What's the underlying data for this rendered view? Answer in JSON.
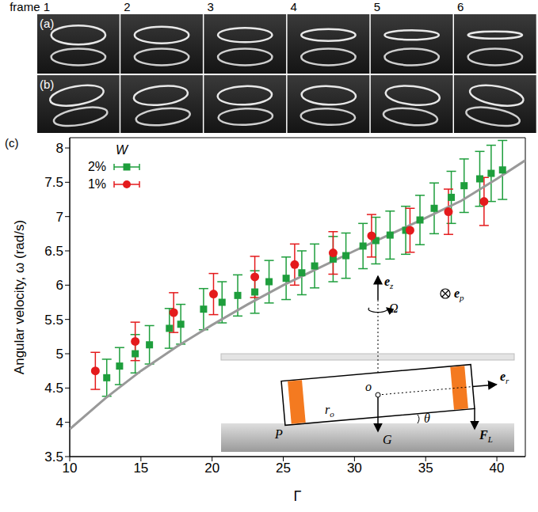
{
  "chart_data": {
    "type": "scatter",
    "panel_label": "(c)",
    "x_label": "Γ",
    "y_label": "Angular velocity, ω (rad/s)",
    "xlim": [
      10,
      42
    ],
    "xticks": [
      10,
      15,
      20,
      25,
      30,
      35,
      40
    ],
    "ylim": [
      3.5,
      8.15
    ],
    "yticks": [
      3.5,
      4,
      4.5,
      5,
      5.5,
      6,
      6.5,
      7,
      7.5,
      8
    ],
    "legend": "top-left",
    "legend_title": "W",
    "series": [
      {
        "type": "line",
        "color": "#999999",
        "line_style": "solid",
        "x": [
          10,
          12.5,
          15,
          17.5,
          20,
          22.5,
          25,
          27.5,
          30,
          32.5,
          35,
          37.5,
          40,
          42
        ],
        "values": [
          3.9,
          4.35,
          4.75,
          5.1,
          5.42,
          5.72,
          6.0,
          6.25,
          6.5,
          6.74,
          6.98,
          7.23,
          7.55,
          7.82
        ]
      },
      {
        "name": "2%",
        "type": "scatter",
        "color": "#1e9e3c",
        "marker": "square",
        "x": [
          12.6,
          13.5,
          14.6,
          15.6,
          17.0,
          17.8,
          19.4,
          20.7,
          21.8,
          23.0,
          24.0,
          25.2,
          26.3,
          27.2,
          28.5,
          29.4,
          30.6,
          31.5,
          32.5,
          33.6,
          34.6,
          35.6,
          36.8,
          37.7,
          38.8,
          39.6,
          40.4
        ],
        "values": [
          4.65,
          4.82,
          5.0,
          5.13,
          5.37,
          5.43,
          5.65,
          5.75,
          5.85,
          5.9,
          6.05,
          6.1,
          6.18,
          6.28,
          6.38,
          6.43,
          6.57,
          6.65,
          6.73,
          6.8,
          6.95,
          7.12,
          7.28,
          7.45,
          7.55,
          7.63,
          7.68
        ],
        "errors": [
          0.27,
          0.27,
          0.28,
          0.28,
          0.29,
          0.29,
          0.3,
          0.3,
          0.3,
          0.31,
          0.31,
          0.31,
          0.32,
          0.32,
          0.33,
          0.33,
          0.33,
          0.34,
          0.35,
          0.35,
          0.36,
          0.37,
          0.38,
          0.39,
          0.4,
          0.41,
          0.43
        ]
      },
      {
        "name": "1%",
        "type": "scatter",
        "color": "#e41a1c",
        "marker": "circle",
        "x": [
          11.8,
          14.6,
          17.3,
          20.1,
          23.0,
          25.8,
          28.5,
          31.2,
          33.9,
          36.6,
          39.1
        ],
        "values": [
          4.75,
          5.18,
          5.6,
          5.87,
          6.12,
          6.3,
          6.47,
          6.72,
          6.8,
          7.07,
          7.22
        ],
        "errors": [
          0.27,
          0.28,
          0.29,
          0.3,
          0.3,
          0.3,
          0.31,
          0.31,
          0.32,
          0.33,
          0.35
        ]
      }
    ],
    "annotations": [
      {
        "text": "e",
        "sub": "z"
      },
      {
        "text": "Ω"
      },
      {
        "text": "e",
        "sub": "p"
      },
      {
        "text": "e",
        "sub": "r"
      },
      {
        "text": "r",
        "sub": "o"
      },
      {
        "text": "o"
      },
      {
        "text": "θ"
      },
      {
        "text": "P"
      },
      {
        "text": "G"
      },
      {
        "text": "F",
        "sub": "L"
      }
    ]
  },
  "photos": {
    "panel_labels": [
      "(a)",
      "(b)"
    ],
    "frames": [
      "frame 1",
      "2",
      "3",
      "4",
      "5",
      "6"
    ]
  }
}
